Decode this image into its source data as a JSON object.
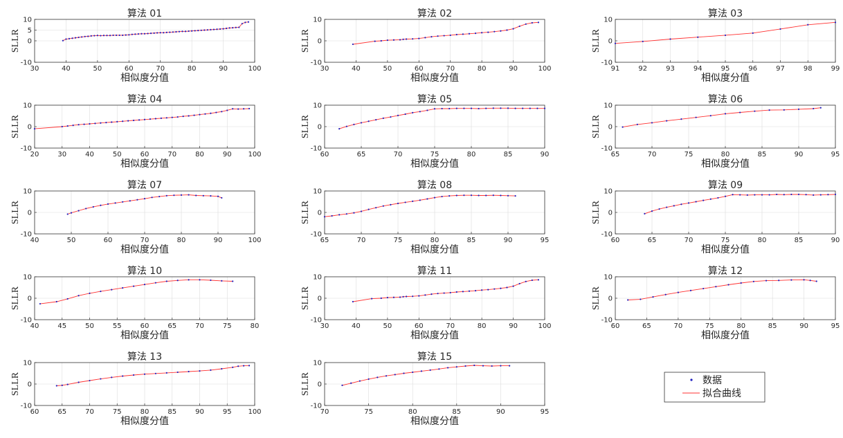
{
  "common": {
    "ylabel": "SLLR",
    "xlabel": "相似度分值",
    "legend": {
      "data_label": "数据",
      "fit_label": "拟合曲线"
    }
  },
  "colors": {
    "data_marker": "#2020c0",
    "fit_line": "#ff3030",
    "grid": "#dcdcdc",
    "axes": "#333333"
  },
  "chart_data": [
    {
      "type": "line",
      "title": "算法 01",
      "xlim": [
        30,
        100
      ],
      "ylim": [
        -10,
        10
      ],
      "xticks": [
        30,
        40,
        50,
        60,
        70,
        80,
        90,
        100
      ],
      "yticks": [
        -10,
        0,
        5,
        10
      ],
      "grid": true,
      "x": [
        39,
        40,
        41,
        42,
        43,
        44,
        45,
        46,
        47,
        48,
        49,
        50,
        51,
        52,
        53,
        54,
        55,
        56,
        57,
        58,
        59,
        60,
        61,
        62,
        63,
        64,
        65,
        66,
        67,
        68,
        69,
        70,
        71,
        72,
        73,
        74,
        75,
        76,
        77,
        78,
        79,
        80,
        81,
        82,
        83,
        84,
        85,
        86,
        87,
        88,
        89,
        90,
        91,
        92,
        93,
        94,
        95,
        96,
        97,
        98
      ],
      "y": [
        0.1,
        0.8,
        1.0,
        1.2,
        1.4,
        1.6,
        1.8,
        2.0,
        2.1,
        2.3,
        2.4,
        2.5,
        2.4,
        2.5,
        2.5,
        2.5,
        2.6,
        2.6,
        2.6,
        2.6,
        2.7,
        2.8,
        3.0,
        3.1,
        3.2,
        3.3,
        3.3,
        3.4,
        3.5,
        3.6,
        3.7,
        3.8,
        3.8,
        3.9,
        4.0,
        4.1,
        4.2,
        4.3,
        4.4,
        4.4,
        4.5,
        4.6,
        4.7,
        4.8,
        4.9,
        5.0,
        5.1,
        5.2,
        5.3,
        5.4,
        5.5,
        5.6,
        5.8,
        6.0,
        6.1,
        6.2,
        6.3,
        8.0,
        8.6,
        8.8
      ]
    },
    {
      "type": "line",
      "title": "算法 02",
      "xlim": [
        30,
        100
      ],
      "ylim": [
        -10,
        10
      ],
      "xticks": [
        30,
        40,
        50,
        60,
        70,
        80,
        90,
        100
      ],
      "yticks": [
        -10,
        0,
        10
      ],
      "grid": true,
      "x": [
        39,
        46,
        48,
        50,
        52,
        54,
        55,
        56,
        58,
        60,
        62,
        64,
        66,
        68,
        70,
        72,
        74,
        76,
        78,
        80,
        82,
        84,
        86,
        88,
        90,
        92,
        94,
        96,
        98
      ],
      "y": [
        -1.6,
        -0.2,
        0.0,
        0.3,
        0.4,
        0.5,
        0.7,
        0.8,
        0.9,
        1.1,
        1.5,
        1.9,
        2.2,
        2.4,
        2.6,
        2.9,
        3.1,
        3.3,
        3.5,
        3.8,
        4.0,
        4.3,
        4.6,
        5.0,
        5.6,
        6.8,
        7.8,
        8.4,
        8.6
      ]
    },
    {
      "type": "line",
      "title": "算法 03",
      "xlim": [
        91,
        99
      ],
      "ylim": [
        -10,
        10
      ],
      "xticks": [
        91,
        92,
        93,
        94,
        95,
        96,
        97,
        98,
        99
      ],
      "yticks": [
        -10,
        0,
        10
      ],
      "grid": true,
      "x": [
        91,
        92,
        93,
        94,
        95,
        96,
        97,
        98,
        99
      ],
      "y": [
        -1.2,
        -0.3,
        0.8,
        1.7,
        2.6,
        3.6,
        5.5,
        7.5,
        8.6
      ]
    },
    {
      "type": "line",
      "title": "算法 04",
      "xlim": [
        20,
        100
      ],
      "ylim": [
        -10,
        10
      ],
      "xticks": [
        20,
        30,
        40,
        50,
        60,
        70,
        80,
        90,
        100
      ],
      "yticks": [
        -10,
        0,
        10
      ],
      "grid": true,
      "x": [
        20,
        30,
        32,
        34,
        36,
        38,
        40,
        42,
        44,
        46,
        48,
        50,
        52,
        54,
        56,
        58,
        60,
        62,
        64,
        66,
        68,
        70,
        72,
        74,
        76,
        78,
        80,
        82,
        84,
        86,
        88,
        90,
        92,
        94,
        96,
        98
      ],
      "y": [
        -1.0,
        0.0,
        0.3,
        0.6,
        0.9,
        1.1,
        1.3,
        1.5,
        1.7,
        1.9,
        2.1,
        2.3,
        2.5,
        2.7,
        2.9,
        3.1,
        3.3,
        3.5,
        3.7,
        3.9,
        4.1,
        4.3,
        4.5,
        4.8,
        5.0,
        5.3,
        5.6,
        5.9,
        6.2,
        6.6,
        7.0,
        7.6,
        8.3,
        8.2,
        8.3,
        8.4
      ]
    },
    {
      "type": "line",
      "title": "算法 05",
      "xlim": [
        60,
        90
      ],
      "ylim": [
        -10,
        10
      ],
      "xticks": [
        60,
        65,
        70,
        75,
        80,
        85,
        90
      ],
      "yticks": [
        -10,
        0,
        10
      ],
      "grid": true,
      "x": [
        62,
        63,
        64,
        65,
        66,
        67,
        68,
        69,
        70,
        71,
        72,
        73,
        74,
        75,
        76,
        77,
        78,
        79,
        80,
        81,
        82,
        83,
        84,
        85,
        86,
        87,
        88,
        89,
        90
      ],
      "y": [
        -1.0,
        0.1,
        1.0,
        1.8,
        2.5,
        3.2,
        3.9,
        4.5,
        5.2,
        5.8,
        6.5,
        7.0,
        7.6,
        8.3,
        8.4,
        8.4,
        8.5,
        8.5,
        8.5,
        8.4,
        8.5,
        8.6,
        8.6,
        8.6,
        8.5,
        8.5,
        8.5,
        8.5,
        8.5
      ]
    },
    {
      "type": "line",
      "title": "算法 06",
      "xlim": [
        65,
        95
      ],
      "ylim": [
        -10,
        10
      ],
      "xticks": [
        65,
        70,
        75,
        80,
        85,
        90,
        95
      ],
      "yticks": [
        -10,
        0,
        10
      ],
      "grid": true,
      "x": [
        66,
        68,
        70,
        72,
        74,
        76,
        78,
        80,
        82,
        84,
        86,
        88,
        90,
        92,
        93
      ],
      "y": [
        -0.2,
        1.0,
        1.8,
        2.7,
        3.5,
        4.3,
        5.1,
        6.0,
        6.6,
        7.2,
        7.7,
        7.8,
        8.1,
        8.4,
        8.8
      ]
    },
    {
      "type": "line",
      "title": "算法 07",
      "xlim": [
        40,
        100
      ],
      "ylim": [
        -10,
        10
      ],
      "xticks": [
        40,
        50,
        60,
        70,
        80,
        90,
        100
      ],
      "yticks": [
        -10,
        0,
        10
      ],
      "grid": true,
      "x": [
        49,
        50,
        52,
        54,
        56,
        58,
        60,
        62,
        64,
        66,
        68,
        70,
        72,
        74,
        76,
        78,
        80,
        82,
        84,
        86,
        88,
        90,
        91
      ],
      "y": [
        -0.8,
        -0.2,
        0.8,
        1.8,
        2.6,
        3.3,
        3.9,
        4.4,
        4.9,
        5.4,
        5.9,
        6.4,
        7.0,
        7.4,
        7.8,
        8.0,
        8.1,
        8.2,
        7.9,
        7.8,
        7.7,
        7.5,
        6.8
      ]
    },
    {
      "type": "line",
      "title": "算法 08",
      "xlim": [
        65,
        95
      ],
      "ylim": [
        -10,
        10
      ],
      "xticks": [
        65,
        70,
        75,
        80,
        85,
        90,
        95
      ],
      "yticks": [
        -10,
        0,
        10
      ],
      "grid": true,
      "x": [
        65,
        66,
        67,
        68,
        69,
        70,
        71,
        72,
        73,
        74,
        75,
        76,
        77,
        78,
        79,
        80,
        81,
        82,
        83,
        84,
        85,
        86,
        87,
        88,
        89,
        90,
        91
      ],
      "y": [
        -2.0,
        -1.6,
        -1.1,
        -0.7,
        -0.2,
        0.5,
        1.4,
        2.2,
        3.0,
        3.6,
        4.2,
        4.7,
        5.2,
        5.7,
        6.3,
        6.9,
        7.4,
        7.7,
        7.9,
        8.0,
        8.0,
        7.9,
        7.9,
        8.0,
        7.9,
        7.8,
        7.7
      ]
    },
    {
      "type": "line",
      "title": "算法 09",
      "xlim": [
        60,
        90
      ],
      "ylim": [
        -10,
        10
      ],
      "xticks": [
        60,
        65,
        70,
        75,
        80,
        85,
        90
      ],
      "yticks": [
        -10,
        0,
        10
      ],
      "grid": true,
      "x": [
        64,
        65,
        66,
        67,
        68,
        69,
        70,
        71,
        72,
        73,
        74,
        75,
        76,
        77,
        78,
        79,
        80,
        81,
        82,
        83,
        84,
        85,
        86,
        87,
        88,
        89,
        90
      ],
      "y": [
        -0.6,
        0.6,
        1.6,
        2.4,
        3.1,
        3.8,
        4.4,
        5.0,
        5.6,
        6.2,
        6.8,
        7.5,
        8.3,
        8.2,
        8.1,
        8.2,
        8.2,
        8.2,
        8.4,
        8.3,
        8.4,
        8.4,
        8.3,
        8.1,
        8.2,
        8.3,
        8.4
      ]
    },
    {
      "type": "line",
      "title": "算法 10",
      "xlim": [
        40,
        80
      ],
      "ylim": [
        -10,
        10
      ],
      "xticks": [
        40,
        45,
        50,
        55,
        60,
        65,
        70,
        75,
        80
      ],
      "yticks": [
        -10,
        0,
        10
      ],
      "grid": true,
      "x": [
        41,
        44,
        46,
        48,
        50,
        52,
        54,
        56,
        58,
        60,
        62,
        64,
        66,
        68,
        70,
        72,
        74,
        76
      ],
      "y": [
        -2.6,
        -1.6,
        -0.3,
        1.2,
        2.3,
        3.2,
        4.0,
        4.8,
        5.6,
        6.4,
        7.2,
        7.9,
        8.3,
        8.6,
        8.6,
        8.4,
        8.1,
        7.9
      ]
    },
    {
      "type": "line",
      "title": "算法 11",
      "xlim": [
        30,
        100
      ],
      "ylim": [
        -10,
        10
      ],
      "xticks": [
        30,
        40,
        50,
        60,
        70,
        80,
        90,
        100
      ],
      "yticks": [
        -10,
        0,
        10
      ],
      "grid": true,
      "x": [
        39,
        45,
        48,
        50,
        52,
        54,
        55,
        56,
        58,
        60,
        62,
        64,
        66,
        68,
        70,
        72,
        74,
        76,
        78,
        80,
        82,
        84,
        86,
        88,
        90,
        92,
        94,
        96,
        98
      ],
      "y": [
        -1.6,
        -0.2,
        0.0,
        0.3,
        0.4,
        0.5,
        0.7,
        0.8,
        0.9,
        1.1,
        1.5,
        1.9,
        2.2,
        2.4,
        2.6,
        2.9,
        3.1,
        3.3,
        3.5,
        3.8,
        4.0,
        4.3,
        4.6,
        5.0,
        5.6,
        6.8,
        7.8,
        8.4,
        8.6
      ]
    },
    {
      "type": "line",
      "title": "算法 12",
      "xlim": [
        60,
        95
      ],
      "ylim": [
        -10,
        10
      ],
      "xticks": [
        60,
        65,
        70,
        75,
        80,
        85,
        90,
        95
      ],
      "yticks": [
        -10,
        0,
        10
      ],
      "grid": true,
      "x": [
        62,
        64,
        66,
        68,
        70,
        72,
        74,
        76,
        78,
        80,
        82,
        84,
        86,
        88,
        90,
        91,
        92
      ],
      "y": [
        -0.8,
        -0.5,
        0.6,
        1.7,
        2.7,
        3.6,
        4.5,
        5.4,
        6.3,
        7.1,
        7.8,
        8.2,
        8.3,
        8.5,
        8.6,
        8.3,
        7.9
      ]
    },
    {
      "type": "line",
      "title": "算法 13",
      "xlim": [
        60,
        100
      ],
      "ylim": [
        -10,
        10
      ],
      "xticks": [
        60,
        65,
        70,
        75,
        80,
        85,
        90,
        95,
        100
      ],
      "yticks": [
        -10,
        0,
        10
      ],
      "grid": true,
      "x": [
        64,
        65,
        66,
        68,
        70,
        72,
        74,
        76,
        78,
        80,
        82,
        84,
        86,
        88,
        90,
        92,
        94,
        96,
        97,
        98,
        99
      ],
      "y": [
        -0.8,
        -0.6,
        -0.2,
        0.8,
        1.6,
        2.4,
        3.1,
        3.7,
        4.2,
        4.6,
        4.9,
        5.2,
        5.5,
        5.8,
        6.1,
        6.5,
        7.1,
        7.8,
        8.3,
        8.5,
        8.6
      ]
    },
    {
      "type": "line",
      "title": "算法 15",
      "xlim": [
        70,
        95
      ],
      "ylim": [
        -10,
        10
      ],
      "xticks": [
        70,
        75,
        80,
        85,
        90,
        95
      ],
      "yticks": [
        -10,
        0,
        10
      ],
      "grid": true,
      "x": [
        72,
        73,
        74,
        75,
        76,
        77,
        78,
        79,
        80,
        81,
        82,
        83,
        84,
        85,
        86,
        87,
        88,
        89,
        90,
        91
      ],
      "y": [
        -0.6,
        0.4,
        1.4,
        2.3,
        3.1,
        3.8,
        4.4,
        5.0,
        5.5,
        6.0,
        6.5,
        7.0,
        7.6,
        8.0,
        8.4,
        8.7,
        8.5,
        8.4,
        8.5,
        8.5
      ]
    }
  ]
}
